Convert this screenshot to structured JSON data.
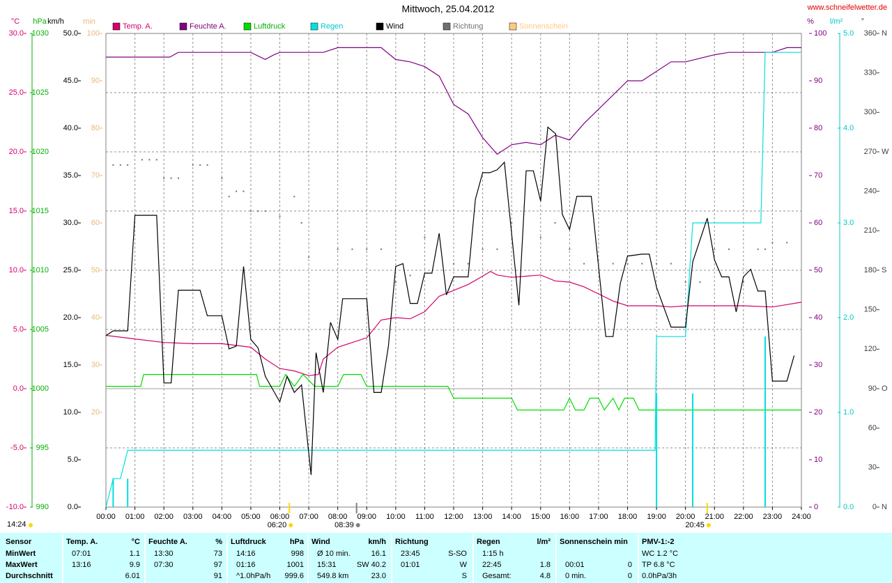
{
  "chart_data": {
    "type": "line",
    "title": "Mittwoch, 25.04.2012",
    "source": "www.schneifelwetter.de",
    "time_stamp": "14:24",
    "xlim": [
      0,
      24
    ],
    "xticks": [
      {
        "value": 0,
        "label": "00:00"
      },
      {
        "value": 1,
        "label": "01:00"
      },
      {
        "value": 2,
        "label": "02:00"
      },
      {
        "value": 3,
        "label": "03:00"
      },
      {
        "value": 4,
        "label": "04:00"
      },
      {
        "value": 5,
        "label": "05:00"
      },
      {
        "value": 6,
        "label": "06:00"
      },
      {
        "value": 7,
        "label": "07:00"
      },
      {
        "value": 8,
        "label": "08:00"
      },
      {
        "value": 9,
        "label": "09:00"
      },
      {
        "value": 10,
        "label": "10:00"
      },
      {
        "value": 11,
        "label": "11:00"
      },
      {
        "value": 12,
        "label": "12:00"
      },
      {
        "value": 13,
        "label": "13:00"
      },
      {
        "value": 14,
        "label": "14:00"
      },
      {
        "value": 15,
        "label": "15:00"
      },
      {
        "value": 16,
        "label": "16:00"
      },
      {
        "value": 17,
        "label": "17:00"
      },
      {
        "value": 18,
        "label": "18:00"
      },
      {
        "value": 19,
        "label": "19:00"
      },
      {
        "value": 20,
        "label": "20:00"
      },
      {
        "value": 21,
        "label": "21:00"
      },
      {
        "value": 22,
        "label": "22:00"
      },
      {
        "value": 23,
        "label": "23:00"
      },
      {
        "value": 24,
        "label": "24:00"
      }
    ],
    "grid": true,
    "axes": {
      "temp": {
        "label": "°C",
        "color": "#d4006a",
        "lim": [
          -10,
          30
        ],
        "ticks": [
          {
            "value": 30,
            "label": "30.0"
          },
          {
            "value": 25,
            "label": "25.0"
          },
          {
            "value": 20,
            "label": "20.0"
          },
          {
            "value": 15,
            "label": "15.0"
          },
          {
            "value": 10,
            "label": "10.0"
          },
          {
            "value": 5,
            "label": "5.0"
          },
          {
            "value": 0,
            "label": "0.0"
          },
          {
            "value": -5,
            "label": "-5.0"
          },
          {
            "value": -10,
            "label": "-10.0"
          }
        ]
      },
      "pressure": {
        "label": "hPa",
        "color": "#00b000",
        "lim": [
          990,
          1030
        ],
        "ticks": [
          1030,
          1025,
          1020,
          1015,
          1010,
          1005,
          1000,
          995,
          990
        ]
      },
      "wind": {
        "label": "km/h",
        "color": "#000000",
        "lim": [
          0,
          50
        ],
        "ticks": [
          {
            "value": 50,
            "label": "50.0"
          },
          {
            "value": 45,
            "label": "45.0"
          },
          {
            "value": 40,
            "label": "40.0"
          },
          {
            "value": 35,
            "label": "35.0"
          },
          {
            "value": 30,
            "label": "30.0"
          },
          {
            "value": 25,
            "label": "25.0"
          },
          {
            "value": 20,
            "label": "20.0"
          },
          {
            "value": 15,
            "label": "15.0"
          },
          {
            "value": 10,
            "label": "10.0"
          },
          {
            "value": 5,
            "label": "5.0"
          },
          {
            "value": 0,
            "label": "0.0"
          }
        ]
      },
      "sun": {
        "label": "min",
        "color": "#e8b878",
        "lim": [
          0,
          100
        ],
        "ticks": [
          100,
          90,
          80,
          70,
          60,
          50,
          40,
          30,
          20
        ]
      },
      "humidity": {
        "label": "%",
        "color": "#800080",
        "lim": [
          0,
          100
        ],
        "ticks": [
          100,
          90,
          80,
          70,
          60,
          50,
          40,
          30,
          20,
          10,
          0
        ]
      },
      "rain": {
        "label": "l/m²",
        "color": "#00c8c8",
        "lim": [
          0,
          5
        ],
        "ticks": [
          {
            "value": 5,
            "label": "5.0"
          },
          {
            "value": 4,
            "label": "4.0"
          },
          {
            "value": 3,
            "label": "3.0"
          },
          {
            "value": 2,
            "label": "2.0"
          },
          {
            "value": 1,
            "label": "1.0"
          },
          {
            "value": 0,
            "label": "0.0"
          }
        ]
      },
      "direction": {
        "label": "°",
        "color": "#404040",
        "lim": [
          0,
          360
        ],
        "ticks": [
          360,
          330,
          300,
          270,
          240,
          210,
          180,
          150,
          120,
          90,
          60,
          30,
          0
        ],
        "directions": [
          {
            "value": 360,
            "label": "N"
          },
          {
            "value": 270,
            "label": "W"
          },
          {
            "value": 180,
            "label": "S"
          },
          {
            "value": 90,
            "label": "O"
          },
          {
            "value": 0,
            "label": "N"
          }
        ]
      }
    },
    "series": [
      {
        "name": "Temp. A.",
        "color": "#d4006a",
        "axis": "temp",
        "x": [
          0,
          1,
          2,
          3,
          4,
          5,
          5.5,
          6,
          6.5,
          7,
          7.33,
          7.5,
          8,
          8.5,
          9,
          9.5,
          10,
          10.5,
          11,
          11.5,
          12,
          12.5,
          13,
          13.27,
          13.5,
          14,
          14.5,
          15,
          15.5,
          16,
          16.5,
          17,
          17.5,
          18,
          18.5,
          19,
          19.5,
          20,
          21,
          22,
          23,
          23.5,
          24
        ],
        "values": [
          4.5,
          4.2,
          3.9,
          3.8,
          3.8,
          3.5,
          2.5,
          1.7,
          1.5,
          1.1,
          1.2,
          2.5,
          3.5,
          3.9,
          4.3,
          5.8,
          6.0,
          5.9,
          6.5,
          7.8,
          8.3,
          8.8,
          9.5,
          9.9,
          9.6,
          9.4,
          9.5,
          9.6,
          9.1,
          9.0,
          8.6,
          8.0,
          7.4,
          7.0,
          7.0,
          7.0,
          6.9,
          7.0,
          7.0,
          7.0,
          6.9,
          7.1,
          7.3
        ]
      },
      {
        "name": "Feuchte A.",
        "color": "#800080",
        "axis": "humidity",
        "x": [
          0,
          2.2,
          2.5,
          5,
          5.5,
          5.8,
          6,
          7.5,
          8,
          9.5,
          10,
          10.5,
          11,
          11.5,
          12,
          12.5,
          13,
          13.5,
          14,
          14.5,
          15,
          15.5,
          16,
          16.5,
          17,
          17.5,
          18,
          18.5,
          19,
          19.5,
          20,
          21,
          21.5,
          23,
          23.5,
          24
        ],
        "values": [
          95,
          95,
          96,
          96,
          94.5,
          95.5,
          96,
          96,
          97,
          97,
          94.5,
          94,
          93,
          91,
          85,
          83,
          78,
          74.5,
          76.5,
          77,
          76.5,
          78.5,
          77.5,
          81,
          84,
          87,
          90,
          90,
          92,
          94,
          94,
          95.5,
          96,
          96,
          97,
          97
        ]
      },
      {
        "name": "Luftdruck",
        "color": "#00dd00",
        "axis": "pressure",
        "x": [
          0,
          1.2,
          1.3,
          5.2,
          5.3,
          6,
          6.2,
          6.5,
          6.8,
          7.2,
          8,
          8.2,
          8.8,
          9,
          11.8,
          12,
          14,
          14.2,
          15.8,
          16,
          16.2,
          16.5,
          16.7,
          17,
          17.2,
          17.5,
          17.7,
          17.9,
          18.2,
          18.4,
          24
        ],
        "values": [
          1000.2,
          1000.2,
          1001.2,
          1001.2,
          1000.2,
          1000.2,
          1001.2,
          1000.2,
          1001.2,
          1000.2,
          1000.2,
          1001.2,
          1001.2,
          1000.2,
          1000.2,
          999.2,
          999.2,
          998.2,
          998.2,
          999.2,
          998.2,
          998.2,
          999.2,
          999.2,
          998.2,
          999.2,
          998.2,
          999.2,
          999.2,
          998.2,
          998.2
        ]
      },
      {
        "name": "Regen",
        "color": "#00e0e0",
        "axis": "rain",
        "x": [
          0,
          0.25,
          0.5,
          0.75,
          18.95,
          19,
          20,
          20.25,
          22.6,
          22.75,
          24
        ],
        "values": [
          0,
          0.3,
          0.3,
          0.6,
          0.6,
          1.8,
          1.8,
          3.0,
          3.0,
          4.8,
          4.8
        ],
        "bars": {
          "x": [
            0.25,
            0.75,
            19,
            20.25,
            22.75
          ],
          "values": [
            0.3,
            0.3,
            1.2,
            1.2,
            1.8
          ]
        }
      },
      {
        "name": "Wind",
        "color": "#000000",
        "axis": "wind",
        "x": [
          0,
          0.25,
          0.75,
          1,
          1.75,
          2,
          2.25,
          2.5,
          3.25,
          3.5,
          4,
          4.25,
          4.5,
          4.75,
          5,
          5.25,
          5.5,
          6,
          6.25,
          6.5,
          6.75,
          7.08,
          7.25,
          7.5,
          7.75,
          8,
          8.17,
          9,
          9.25,
          9.5,
          9.75,
          10,
          10.25,
          10.5,
          10.75,
          11,
          11.25,
          11.5,
          11.75,
          12,
          12.5,
          12.75,
          13,
          13.25,
          13.5,
          13.75,
          14.25,
          14.5,
          14.75,
          15,
          15.25,
          15.52,
          15.75,
          16,
          16.25,
          16.75,
          17,
          17.25,
          17.5,
          17.75,
          18,
          18.5,
          18.75,
          19,
          19.5,
          20,
          20.25,
          20.75,
          21,
          21.25,
          21.5,
          21.75,
          22,
          22.25,
          22.5,
          22.75,
          23,
          23.5,
          23.75
        ],
        "values": [
          18.1,
          18.6,
          18.6,
          30.8,
          30.8,
          13.1,
          13.1,
          22.9,
          22.9,
          20.2,
          20.2,
          16.7,
          17.0,
          25.4,
          17.7,
          16.8,
          13.8,
          11.1,
          13.8,
          12.1,
          12.9,
          3.4,
          16.3,
          12.1,
          19.5,
          17.7,
          22.0,
          22.0,
          12.1,
          12.1,
          17.0,
          25.4,
          25.7,
          21.5,
          21.5,
          24.7,
          24.7,
          28.9,
          22.4,
          24.3,
          24.3,
          32.5,
          35.3,
          35.3,
          35.6,
          36.4,
          21.3,
          35.5,
          35.5,
          32.3,
          40.1,
          39.4,
          30.9,
          29.3,
          32.8,
          32.8,
          25.4,
          18.0,
          18.0,
          23.6,
          26.5,
          26.7,
          26.7,
          23.2,
          19.0,
          19.0,
          25.9,
          30.5,
          26.1,
          24.3,
          24.3,
          20.6,
          24.3,
          25.1,
          22.8,
          22.8,
          13.3,
          13.3,
          16.0
        ]
      },
      {
        "name": "Richtung",
        "color": "#707070",
        "axis": "direction",
        "type": "scatter",
        "x": [
          0.25,
          0.5,
          0.75,
          1.25,
          1.5,
          1.75,
          2,
          2.25,
          2.5,
          3,
          3.25,
          3.5,
          4,
          4.25,
          4.5,
          4.75,
          5,
          5.25,
          5.5,
          6,
          6.5,
          6.75,
          7,
          8,
          8.5,
          9,
          9.5,
          10,
          10.5,
          11,
          11.5,
          12,
          12.5,
          13,
          13.5,
          14,
          15,
          15.5,
          16,
          16.5,
          17,
          17.5,
          18,
          18.5,
          19,
          19.5,
          20,
          20.5,
          21,
          21.5,
          22,
          22.5,
          22.75,
          23,
          23.5
        ],
        "values": [
          260,
          260,
          260,
          264,
          264,
          264,
          250,
          250,
          250,
          260,
          260,
          260,
          250,
          236,
          240,
          240,
          225,
          225,
          225,
          221,
          236,
          216,
          190,
          196,
          196,
          196,
          196,
          171,
          176,
          205,
          205,
          185,
          185,
          196,
          196,
          216,
          205,
          216,
          196,
          185,
          185,
          185,
          185,
          185,
          185,
          185,
          171,
          171,
          196,
          196,
          171,
          196,
          196,
          201,
          201
        ]
      },
      {
        "name": "Sonnenschein",
        "color": "#ffc880",
        "axis": "sun",
        "x": [],
        "values": []
      }
    ],
    "annotations": [
      {
        "x": 6.33,
        "label": "06:20",
        "kind": "sun"
      },
      {
        "x": 8.65,
        "label": "08:39",
        "kind": "moon"
      },
      {
        "x": 20.75,
        "label": "20:45",
        "kind": "sun"
      }
    ]
  },
  "table": {
    "corner": "Sensor",
    "row_labels": [
      "MinWert",
      "MaxWert",
      "Durchschnitt"
    ],
    "columns": [
      {
        "title": "Temp. A.",
        "unit": "°C",
        "cells": [
          [
            "07:01",
            "1.1"
          ],
          [
            "13:16",
            "9.9"
          ],
          [
            null,
            "6.01"
          ]
        ]
      },
      {
        "title": "Feuchte A.",
        "unit": "%",
        "cells": [
          [
            "13:30",
            "73"
          ],
          [
            "07:30",
            "97"
          ],
          [
            null,
            "91"
          ]
        ]
      },
      {
        "title": "Luftdruck",
        "unit": "hPa",
        "cells": [
          [
            "14:16",
            "998"
          ],
          [
            "01:16",
            "1001"
          ],
          [
            "^1.0hPa/h",
            "999.6"
          ]
        ]
      },
      {
        "title": "Wind",
        "unit": "km/h",
        "cells": [
          [
            "Ø 10 min.",
            "16.1"
          ],
          [
            "15:31",
            "SW 40.2"
          ],
          [
            "549.8 km",
            "23.0"
          ]
        ]
      },
      {
        "title": "Richtung",
        "cells": [
          [
            "23:45",
            "S-SO"
          ],
          [
            "01:01",
            "W"
          ],
          [
            null,
            "S"
          ]
        ]
      },
      {
        "title": "Regen",
        "unit": "l/m²",
        "cells": [
          [
            "1:15 h",
            null
          ],
          [
            "22:45",
            "1.8"
          ],
          [
            "Gesamt:",
            "4.8"
          ]
        ]
      },
      {
        "title": "Sonnenschein min",
        "cells": [
          [
            null,
            null
          ],
          [
            "00:01",
            "0"
          ],
          [
            "0 min.",
            "0"
          ]
        ]
      },
      {
        "title": "PMV-1:-2",
        "cells": [
          [
            "WC 1.2 °C"
          ],
          [
            "TP 6.8 °C"
          ],
          [
            "0.0hPa/3h"
          ]
        ]
      }
    ]
  }
}
